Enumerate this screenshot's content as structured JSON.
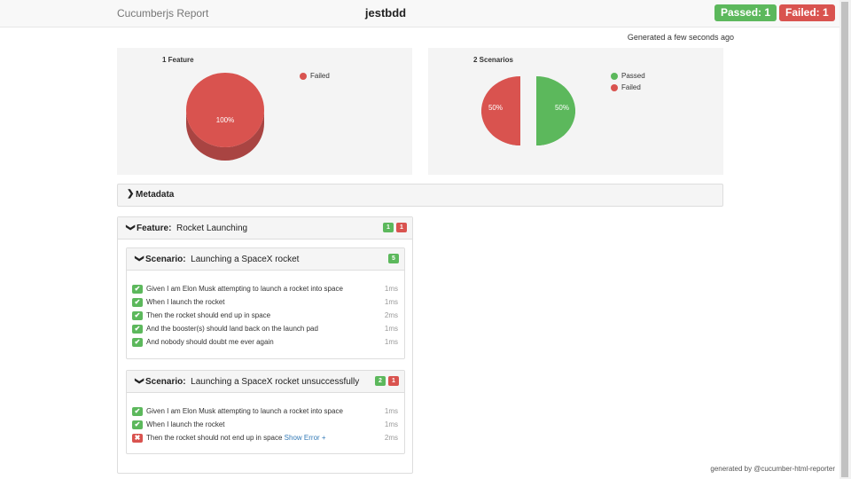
{
  "navbar": {
    "brand": "Cucumberjs Report",
    "project": "jestbdd",
    "passed_badge": "Passed: 1",
    "failed_badge": "Failed: 1"
  },
  "generated": "Generated a few seconds ago",
  "features_chart": {
    "title": "1 Feature",
    "legend": [
      {
        "label": "Failed",
        "color": "#d9534f"
      }
    ],
    "slices": [
      {
        "label": "Failed",
        "value": 100,
        "display": "100%",
        "color": "#d9534f"
      }
    ]
  },
  "scenarios_chart": {
    "title": "2 Scenarios",
    "legend": [
      {
        "label": "Passed",
        "color": "#5cb85c"
      },
      {
        "label": "Failed",
        "color": "#d9534f"
      }
    ],
    "slices": [
      {
        "label": "Passed",
        "value": 50,
        "display": "50%",
        "color": "#5cb85c"
      },
      {
        "label": "Failed",
        "value": 50,
        "display": "50%",
        "color": "#d9534f"
      }
    ]
  },
  "metadata": {
    "label": "Metadata"
  },
  "feature": {
    "keyword": "Feature:",
    "name": "Rocket Launching",
    "passed_count": "1",
    "failed_count": "1",
    "scenarios": [
      {
        "keyword": "Scenario:",
        "name": "Launching a SpaceX rocket",
        "passed_count": "5",
        "steps": [
          {
            "text": "Given I am Elon Musk attempting to launch a rocket into space",
            "duration": "1ms",
            "status": "passed"
          },
          {
            "text": "When I launch the rocket",
            "duration": "1ms",
            "status": "passed"
          },
          {
            "text": "Then the rocket should end up in space",
            "duration": "2ms",
            "status": "passed"
          },
          {
            "text": "And the booster(s) should land back on the launch pad",
            "duration": "1ms",
            "status": "passed"
          },
          {
            "text": "And nobody should doubt me ever again",
            "duration": "1ms",
            "status": "passed"
          }
        ]
      },
      {
        "keyword": "Scenario:",
        "name": "Launching a SpaceX rocket unsuccessfully",
        "passed_count": "2",
        "failed_count": "1",
        "steps": [
          {
            "text": "Given I am Elon Musk attempting to launch a rocket into space",
            "duration": "1ms",
            "status": "passed"
          },
          {
            "text": "When I launch the rocket",
            "duration": "1ms",
            "status": "passed"
          },
          {
            "text": "Then the rocket should not end up in space",
            "duration": "2ms",
            "status": "failed",
            "link": "Show Error +"
          }
        ]
      }
    ]
  },
  "footer": "generated by @cucumber-html-reporter"
}
